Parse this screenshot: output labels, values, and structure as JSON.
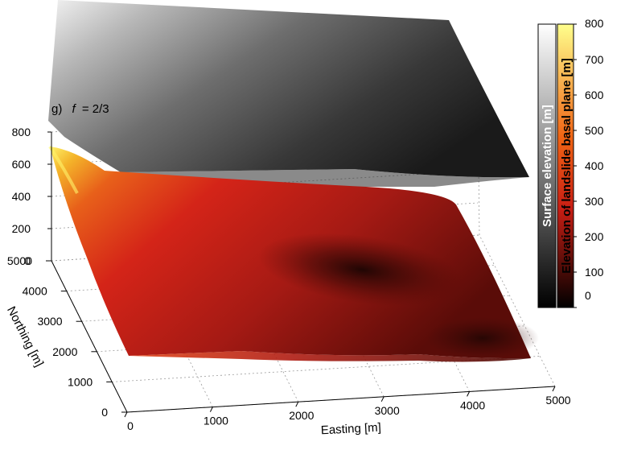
{
  "panel": {
    "letter": "g)",
    "var": "f",
    "eq": "= 2/3"
  },
  "chart_data": {
    "type": "surface3d",
    "title": "",
    "xlabel": "Easting [m]",
    "ylabel": "Northing [m]",
    "zlabel": "",
    "xlim": [
      0,
      5000
    ],
    "ylim": [
      0,
      5000
    ],
    "zlim": [
      0,
      800
    ],
    "x_ticks": [
      0,
      1000,
      2000,
      3000,
      4000,
      5000
    ],
    "y_ticks": [
      0,
      1000,
      2000,
      3000,
      4000,
      5000
    ],
    "z_ticks": [
      0,
      200,
      400,
      600,
      800
    ],
    "series": [
      {
        "name": "Surface elevation [m]",
        "colormap": "gray",
        "colors": [
          "#000000",
          "#ffffff"
        ]
      },
      {
        "name": "Elevation of landslide basal plane [m]",
        "colormap": "hot",
        "colors": [
          "#000000",
          "#c81e14",
          "#f06414",
          "#ffff8c"
        ]
      }
    ],
    "colorbar": {
      "ticks": [
        0,
        100,
        200,
        300,
        400,
        500,
        600,
        700,
        800
      ],
      "range": [
        0,
        800
      ]
    },
    "grid": true
  }
}
